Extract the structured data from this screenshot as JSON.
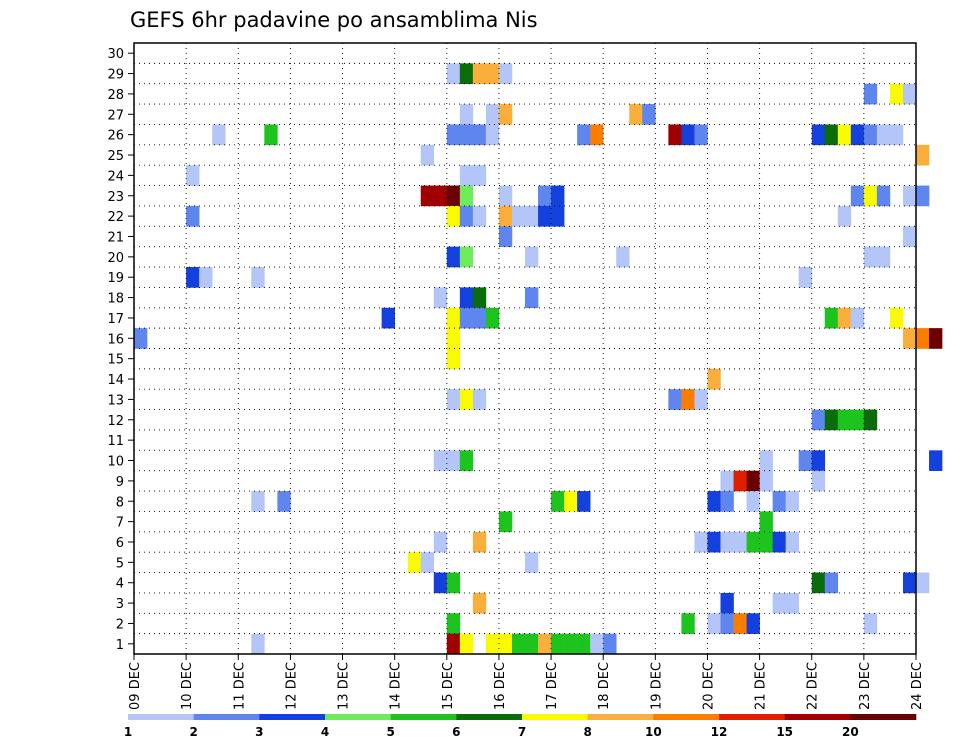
{
  "chart_data": {
    "type": "heatmap",
    "title": "GEFS 6hr padavine po ansamblima Nis",
    "xlabel": "",
    "ylabel": "",
    "y_ticks": [
      "1",
      "2",
      "3",
      "4",
      "5",
      "6",
      "7",
      "8",
      "9",
      "10",
      "11",
      "12",
      "13",
      "14",
      "15",
      "16",
      "17",
      "18",
      "19",
      "20",
      "21",
      "22",
      "23",
      "24",
      "25",
      "26",
      "27",
      "28",
      "29",
      "30"
    ],
    "x_ticks": [
      "09 DEC",
      "10 DEC",
      "11 DEC",
      "12 DEC",
      "13 DEC",
      "14 DEC",
      "15 DEC",
      "16 DEC",
      "17 DEC",
      "18 DEC",
      "19 DEC",
      "20 DEC",
      "21 DEC",
      "22 DEC",
      "23 DEC",
      "24 DEC"
    ],
    "time_steps_per_day": 4,
    "grid": true,
    "color_scale": {
      "labels": [
        "1",
        "2",
        "3",
        "4",
        "5",
        "6",
        "7",
        "8",
        "10",
        "12",
        "15",
        "20"
      ],
      "colors": [
        "#b3c6f7",
        "#5f86ee",
        "#1440dd",
        "#6fec5c",
        "#1ec41e",
        "#0b6c0b",
        "#fafa00",
        "#faae3c",
        "#fa7d00",
        "#e01e00",
        "#a00000",
        "#6a0000"
      ]
    },
    "cells": [
      [
        29,
        24,
        1
      ],
      [
        29,
        25,
        6
      ],
      [
        29,
        26,
        8
      ],
      [
        29,
        27,
        8
      ],
      [
        29,
        28,
        1
      ],
      [
        28,
        56,
        2
      ],
      [
        28,
        58,
        7
      ],
      [
        28,
        59,
        1
      ],
      [
        27,
        25,
        1
      ],
      [
        27,
        27,
        1
      ],
      [
        27,
        28,
        8
      ],
      [
        27,
        38,
        8
      ],
      [
        27,
        39,
        2
      ],
      [
        26,
        6,
        1
      ],
      [
        26,
        10,
        5
      ],
      [
        26,
        24,
        2
      ],
      [
        26,
        25,
        2
      ],
      [
        26,
        26,
        2
      ],
      [
        26,
        27,
        1
      ],
      [
        26,
        34,
        2
      ],
      [
        26,
        35,
        9
      ],
      [
        26,
        41,
        11
      ],
      [
        26,
        42,
        3
      ],
      [
        26,
        43,
        2
      ],
      [
        26,
        52,
        3
      ],
      [
        26,
        53,
        6
      ],
      [
        26,
        54,
        7
      ],
      [
        26,
        55,
        3
      ],
      [
        26,
        56,
        2
      ],
      [
        26,
        57,
        1
      ],
      [
        26,
        58,
        1
      ],
      [
        25,
        22,
        1
      ],
      [
        25,
        60,
        8
      ],
      [
        24,
        4,
        1
      ],
      [
        24,
        25,
        1
      ],
      [
        24,
        26,
        1
      ],
      [
        23,
        22,
        11
      ],
      [
        23,
        23,
        11
      ],
      [
        23,
        24,
        12
      ],
      [
        23,
        25,
        4
      ],
      [
        23,
        28,
        1
      ],
      [
        23,
        31,
        2
      ],
      [
        23,
        32,
        3
      ],
      [
        23,
        55,
        2
      ],
      [
        23,
        56,
        7
      ],
      [
        23,
        57,
        2
      ],
      [
        23,
        59,
        1
      ],
      [
        23,
        60,
        2
      ],
      [
        22,
        4,
        2
      ],
      [
        22,
        24,
        7
      ],
      [
        22,
        25,
        2
      ],
      [
        22,
        26,
        1
      ],
      [
        22,
        28,
        8
      ],
      [
        22,
        29,
        1
      ],
      [
        22,
        30,
        1
      ],
      [
        22,
        31,
        3
      ],
      [
        22,
        32,
        3
      ],
      [
        22,
        54,
        1
      ],
      [
        21,
        28,
        2
      ],
      [
        21,
        59,
        1
      ],
      [
        20,
        24,
        3
      ],
      [
        20,
        25,
        4
      ],
      [
        20,
        30,
        1
      ],
      [
        20,
        37,
        1
      ],
      [
        20,
        56,
        1
      ],
      [
        20,
        57,
        1
      ],
      [
        19,
        4,
        3
      ],
      [
        19,
        5,
        1
      ],
      [
        19,
        9,
        1
      ],
      [
        19,
        51,
        1
      ],
      [
        18,
        23,
        1
      ],
      [
        18,
        25,
        3
      ],
      [
        18,
        26,
        6
      ],
      [
        18,
        30,
        2
      ],
      [
        17,
        19,
        3
      ],
      [
        17,
        24,
        7
      ],
      [
        17,
        25,
        2
      ],
      [
        17,
        26,
        2
      ],
      [
        17,
        27,
        5
      ],
      [
        17,
        53,
        5
      ],
      [
        17,
        54,
        8
      ],
      [
        17,
        55,
        1
      ],
      [
        17,
        58,
        7
      ],
      [
        16,
        0,
        2
      ],
      [
        16,
        24,
        7
      ],
      [
        16,
        59,
        8
      ],
      [
        16,
        60,
        9
      ],
      [
        16,
        61,
        12
      ],
      [
        15,
        24,
        7
      ],
      [
        14,
        44,
        8
      ],
      [
        13,
        24,
        1
      ],
      [
        13,
        25,
        7
      ],
      [
        13,
        26,
        1
      ],
      [
        13,
        41,
        2
      ],
      [
        13,
        42,
        9
      ],
      [
        13,
        43,
        1
      ],
      [
        12,
        52,
        2
      ],
      [
        12,
        53,
        6
      ],
      [
        12,
        54,
        5
      ],
      [
        12,
        55,
        5
      ],
      [
        12,
        56,
        6
      ],
      [
        10,
        23,
        1
      ],
      [
        10,
        24,
        1
      ],
      [
        10,
        25,
        5
      ],
      [
        10,
        48,
        1
      ],
      [
        10,
        51,
        2
      ],
      [
        10,
        52,
        3
      ],
      [
        10,
        61,
        3
      ],
      [
        9,
        45,
        1
      ],
      [
        9,
        46,
        10
      ],
      [
        9,
        47,
        12
      ],
      [
        9,
        48,
        1
      ],
      [
        9,
        52,
        1
      ],
      [
        8,
        9,
        1
      ],
      [
        8,
        11,
        2
      ],
      [
        8,
        32,
        5
      ],
      [
        8,
        33,
        7
      ],
      [
        8,
        34,
        3
      ],
      [
        8,
        44,
        3
      ],
      [
        8,
        45,
        2
      ],
      [
        8,
        47,
        1
      ],
      [
        8,
        49,
        2
      ],
      [
        8,
        50,
        1
      ],
      [
        7,
        28,
        5
      ],
      [
        7,
        48,
        5
      ],
      [
        6,
        23,
        1
      ],
      [
        6,
        26,
        8
      ],
      [
        6,
        43,
        1
      ],
      [
        6,
        44,
        3
      ],
      [
        6,
        45,
        1
      ],
      [
        6,
        46,
        1
      ],
      [
        6,
        47,
        5
      ],
      [
        6,
        48,
        5
      ],
      [
        6,
        49,
        3
      ],
      [
        6,
        50,
        1
      ],
      [
        5,
        21,
        7
      ],
      [
        5,
        22,
        1
      ],
      [
        5,
        30,
        1
      ],
      [
        4,
        23,
        3
      ],
      [
        4,
        24,
        5
      ],
      [
        4,
        52,
        6
      ],
      [
        4,
        53,
        2
      ],
      [
        4,
        59,
        3
      ],
      [
        4,
        60,
        1
      ],
      [
        3,
        26,
        8
      ],
      [
        3,
        45,
        3
      ],
      [
        3,
        49,
        1
      ],
      [
        3,
        50,
        1
      ],
      [
        2,
        24,
        5
      ],
      [
        2,
        42,
        5
      ],
      [
        2,
        44,
        1
      ],
      [
        2,
        45,
        2
      ],
      [
        2,
        46,
        9
      ],
      [
        2,
        47,
        3
      ],
      [
        2,
        56,
        1
      ],
      [
        1,
        9,
        1
      ],
      [
        1,
        24,
        11
      ],
      [
        1,
        25,
        7
      ],
      [
        1,
        27,
        7
      ],
      [
        1,
        28,
        7
      ],
      [
        1,
        29,
        5
      ],
      [
        1,
        30,
        5
      ],
      [
        1,
        31,
        8
      ],
      [
        1,
        32,
        5
      ],
      [
        1,
        33,
        5
      ],
      [
        1,
        34,
        5
      ],
      [
        1,
        35,
        1
      ],
      [
        1,
        36,
        2
      ]
    ]
  }
}
